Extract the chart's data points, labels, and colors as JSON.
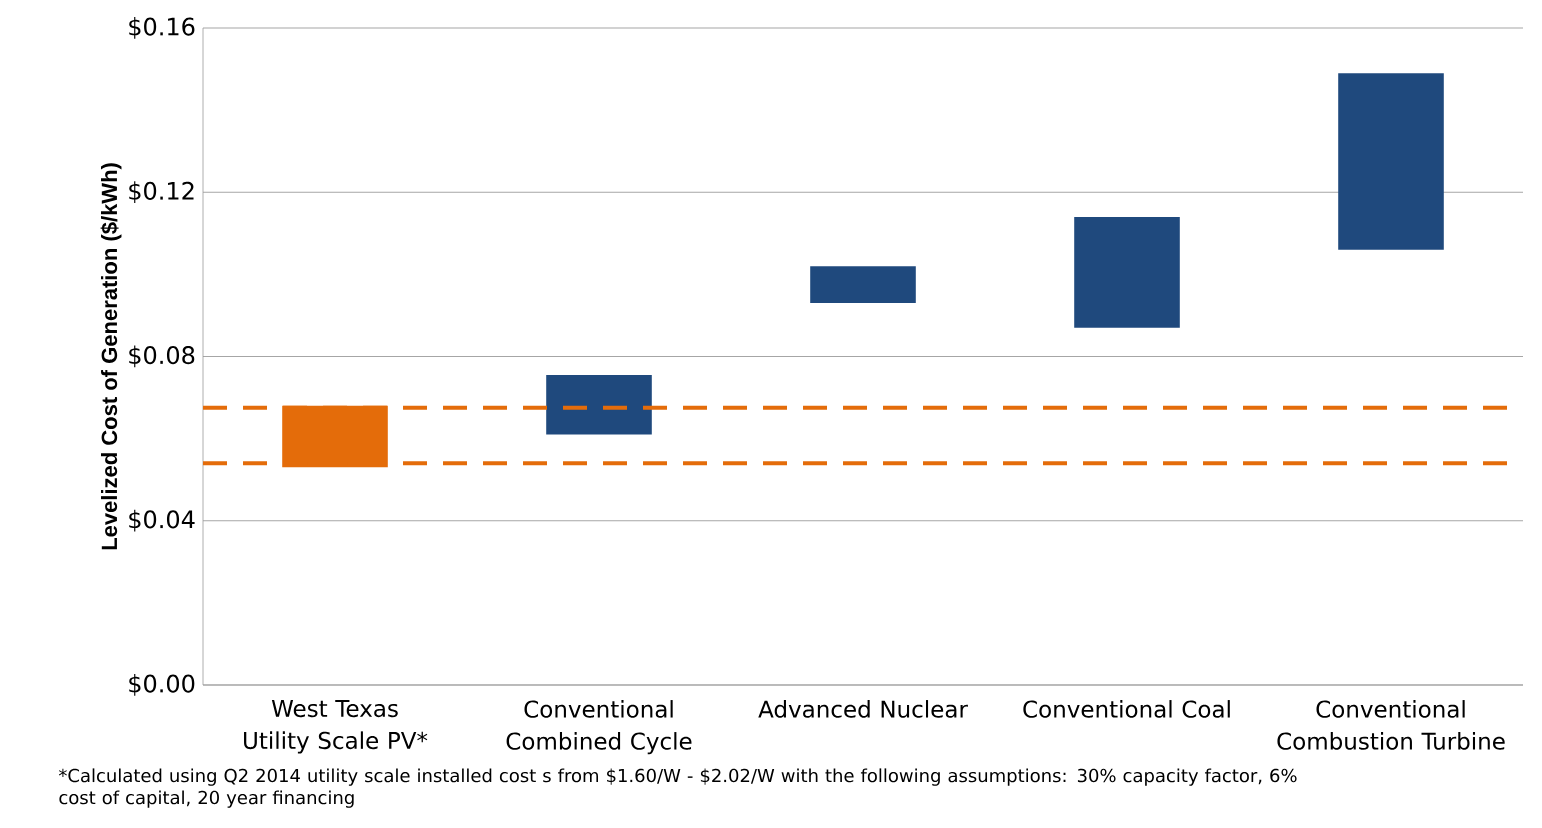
{
  "chart_data": {
    "type": "bar",
    "ylabel": "Levelized Cost of Generation ($/kWh)",
    "categories": [
      "West Texas Utility Scale PV*",
      "Conventional Combined Cycle",
      "Advanced Nuclear",
      "Conventional Coal",
      "Conventional Combustion Turbine"
    ],
    "base": [
      0.053,
      0.061,
      0.093,
      0.087,
      0.106
    ],
    "values": [
      0.015,
      0.0145,
      0.009,
      0.027,
      0.043
    ],
    "colors": [
      "#e46c0a",
      "#1f497d",
      "#1f497d",
      "#1f497d",
      "#1f497d"
    ],
    "ylim": [
      0,
      0.16
    ],
    "yticks": [
      {
        "value": 0,
        "label": "$0.00"
      },
      {
        "value": 0.04,
        "label": "$0.04"
      },
      {
        "value": 0.08,
        "label": "$0.08"
      },
      {
        "value": 0.12,
        "label": "$0.12"
      },
      {
        "value": 0.16,
        "label": "$0.16"
      }
    ],
    "grid": "y",
    "ref_lines": [
      {
        "axis": "y",
        "value": 0.0675,
        "color": "#e46c0a",
        "line_style": "dashed"
      },
      {
        "axis": "y",
        "value": 0.054,
        "color": "#e46c0a",
        "line_style": "dashed"
      }
    ],
    "annotations": [
      "*Calculated using Q2 2014 utility scale installed cost s from $1.60/W - $2.02/W with the following assumptions: 30% capacity factor, 6% cost of capital, 20 year financing"
    ]
  }
}
